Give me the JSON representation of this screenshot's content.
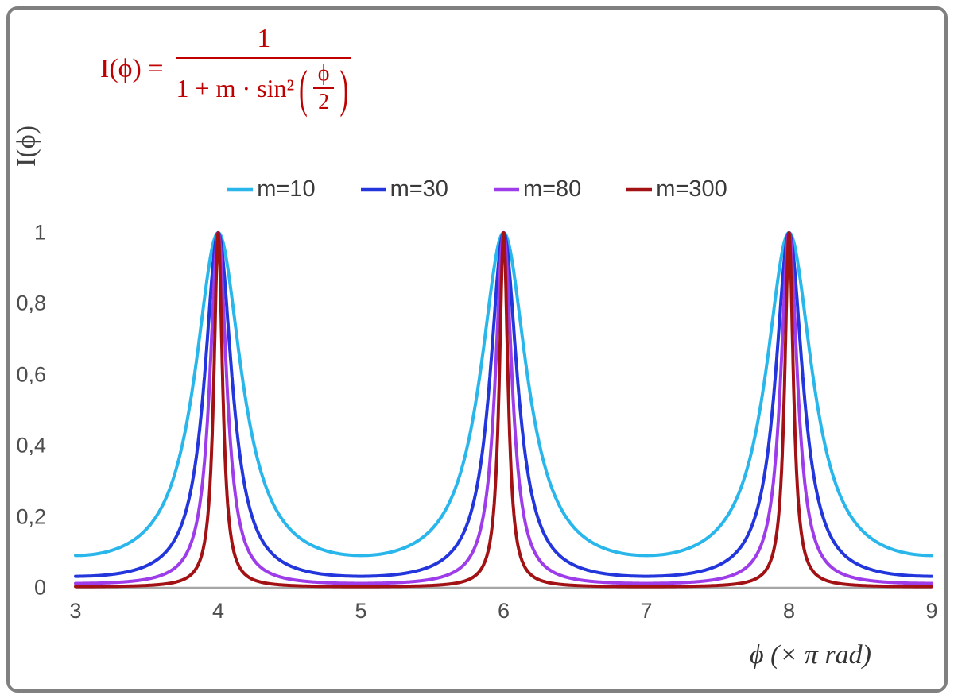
{
  "figure": {
    "formula": {
      "lhs": "I(ϕ) =",
      "numerator": "1",
      "denominator_prefix": "1 + m · sin²",
      "paren_open": "(",
      "inner_numerator": "ϕ",
      "inner_denominator": "2",
      "paren_close": ")",
      "color": "#C00000"
    },
    "y_axis_title": "I(ϕ)",
    "x_axis_title": "ϕ  (× π rad)"
  },
  "chart_data": {
    "type": "line",
    "function": "I(phi) = 1 / (1 + m * sin^2(phi / 2))",
    "xlabel": "ϕ (× π rad)",
    "ylabel": "I(ϕ)",
    "x_range": [
      3,
      9
    ],
    "y_range": [
      0,
      1
    ],
    "x_tick_labels": [
      "3",
      "4",
      "5",
      "6",
      "7",
      "8",
      "9"
    ],
    "x_tick_values": [
      3,
      4,
      5,
      6,
      7,
      8,
      9
    ],
    "y_tick_labels": [
      "0",
      "0,2",
      "0,4",
      "0,6",
      "0,8",
      "1"
    ],
    "y_tick_values": [
      0,
      0.2,
      0.4,
      0.6,
      0.8,
      1
    ],
    "grid": false,
    "legend_position": "top-center",
    "axis_color": "#A6A6A6",
    "tick_label_color": "#4D4D4D",
    "peaks_at_x": [
      4,
      6,
      8
    ],
    "peak_value": 1,
    "series": [
      {
        "label": "m=10",
        "m": 10,
        "color": "#29B6EA",
        "min_value": 0.0909
      },
      {
        "label": "m=30",
        "m": 30,
        "color": "#2236DC",
        "min_value": 0.0323
      },
      {
        "label": "m=80",
        "m": 80,
        "color": "#9D3CE8",
        "min_value": 0.0123
      },
      {
        "label": "m=300",
        "m": 300,
        "color": "#A21215",
        "min_value": 0.0033
      }
    ]
  }
}
